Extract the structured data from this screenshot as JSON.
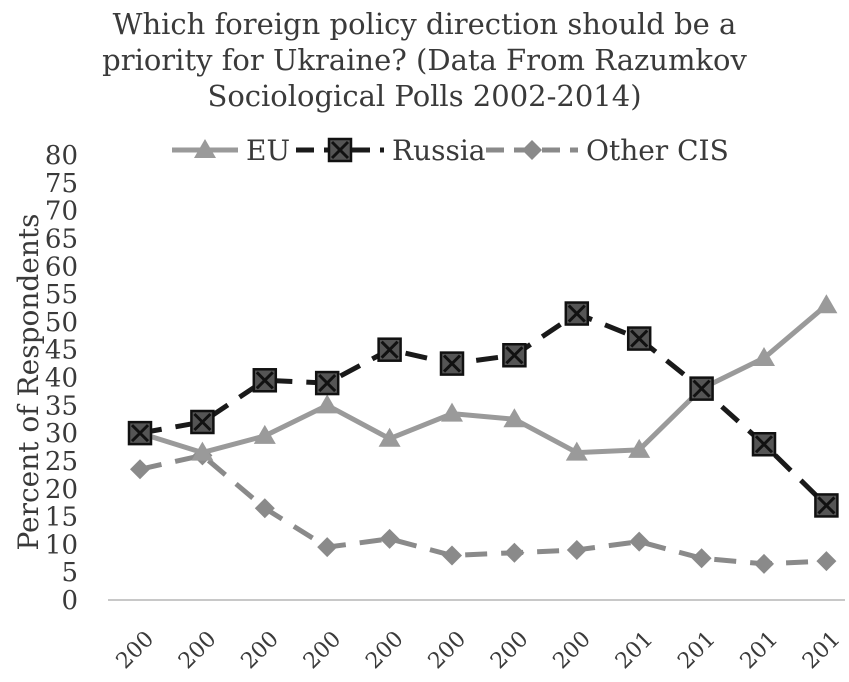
{
  "chart_data": {
    "type": "line",
    "title_lines": [
      "Which foreign policy direction should be a",
      "priority for Ukraine? (Data From Razumkov",
      "Sociological Polls 2002-2014)"
    ],
    "ylabel": "Percent of Respondents",
    "xlabel": "",
    "ylim": [
      0,
      80
    ],
    "ytick_step": 5,
    "categories": [
      "200",
      "200",
      "200",
      "200",
      "200",
      "200",
      "200",
      "200",
      "201",
      "201",
      "201",
      "201"
    ],
    "legend_position": "top",
    "grid": false,
    "series": [
      {
        "name": "EU",
        "color": "#9a9a9a",
        "dash": "solid",
        "marker": "triangle",
        "values": [
          30,
          26.5,
          29.5,
          35,
          29,
          33.5,
          32.5,
          26.5,
          27,
          38,
          43.5,
          53
        ]
      },
      {
        "name": "Russia",
        "color": "#1a1a1a",
        "dash": "dashed",
        "marker": "x-square",
        "values": [
          30,
          32,
          39.5,
          39,
          45,
          42.5,
          44,
          51.5,
          47,
          38,
          28,
          17
        ]
      },
      {
        "name": "Other CIS",
        "color": "#8a8a8a",
        "dash": "dashed",
        "marker": "diamond",
        "values": [
          23.5,
          26,
          16.5,
          9.5,
          11,
          8,
          8.5,
          9,
          10.5,
          7.5,
          6.5,
          7
        ]
      }
    ]
  }
}
